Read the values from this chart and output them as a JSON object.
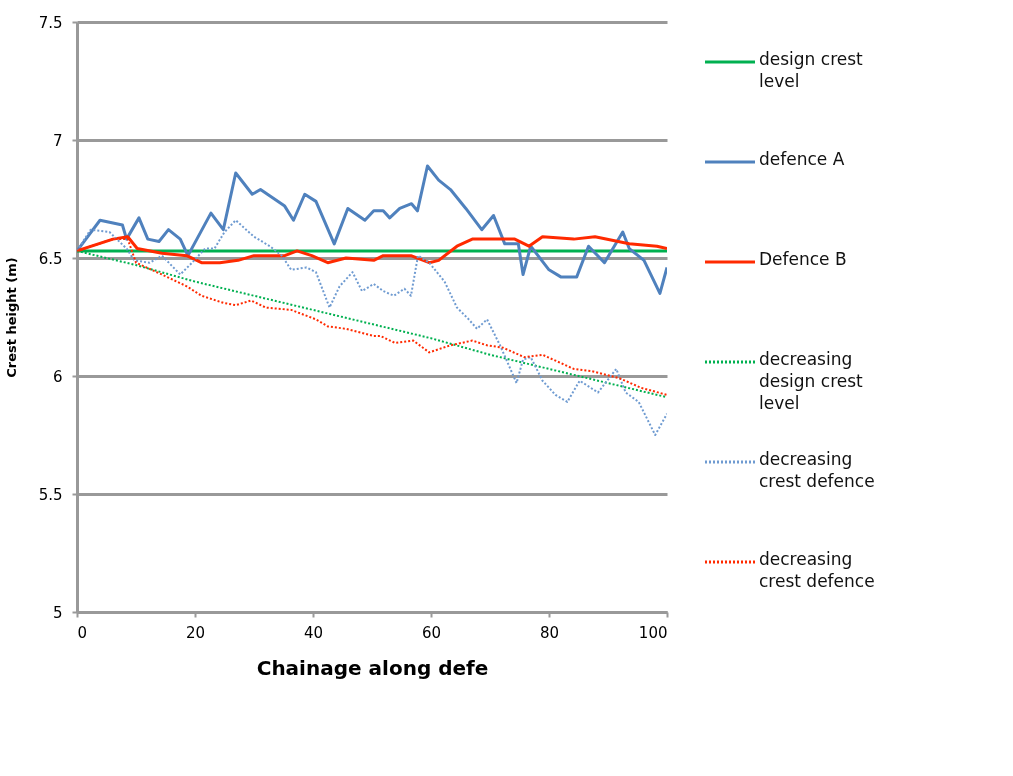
{
  "chart_data": {
    "type": "line",
    "xlabel": "Chainage along defe",
    "ylabel": "Crest height (m)",
    "xlim": [
      0,
      100
    ],
    "xticks": [
      0,
      20,
      40,
      60,
      80,
      100
    ],
    "ylim": [
      5,
      7.5
    ],
    "yticks": [
      5,
      5.5,
      6,
      6.5,
      7,
      7.5
    ],
    "grid": "y",
    "legend": "right",
    "marker": "none",
    "series": [
      {
        "name": "design crest level",
        "color": "#00b050",
        "line_style": "solid",
        "x": [
          0,
          100
        ],
        "values": [
          6.53,
          6.53
        ]
      },
      {
        "name": "defence A",
        "color": "#4f81bd",
        "line_style": "solid",
        "x": [
          0,
          3.9,
          7.7,
          8.4,
          10.5,
          12,
          13.9,
          15.5,
          17.5,
          18.8,
          22.7,
          24.8,
          26.9,
          29.7,
          31.1,
          35.2,
          36.7,
          38.6,
          40.5,
          43.6,
          45.9,
          48.8,
          50.3,
          51.9,
          53,
          54.7,
          56.7,
          57.7,
          59.4,
          61.3,
          63.3,
          65.9,
          68.6,
          70.6,
          72.5,
          74.8,
          75.6,
          76.9,
          80,
          82,
          84.7,
          86.7,
          89.4,
          92.5,
          93.6,
          96.1,
          98.8,
          100
        ],
        "values": [
          6.53,
          6.66,
          6.64,
          6.58,
          6.67,
          6.58,
          6.57,
          6.62,
          6.58,
          6.51,
          6.69,
          6.62,
          6.86,
          6.77,
          6.79,
          6.72,
          6.66,
          6.77,
          6.74,
          6.56,
          6.71,
          6.66,
          6.7,
          6.7,
          6.67,
          6.71,
          6.73,
          6.7,
          6.89,
          6.83,
          6.79,
          6.71,
          6.62,
          6.68,
          6.56,
          6.56,
          6.43,
          6.55,
          6.45,
          6.42,
          6.42,
          6.55,
          6.48,
          6.61,
          6.54,
          6.49,
          6.35,
          6.46
        ]
      },
      {
        "name": "Defence B",
        "color": "#ff2a00",
        "line_style": "solid",
        "x": [
          0,
          6.1,
          8.6,
          10.2,
          14.4,
          18.6,
          21.1,
          24.2,
          27.3,
          30,
          35.2,
          37.3,
          39.8,
          42.5,
          45.6,
          50.3,
          51.9,
          56.6,
          59.7,
          61.3,
          64.4,
          67,
          70.6,
          74.2,
          76.6,
          78.9,
          84.2,
          87.8,
          93.6,
          98.3,
          100
        ],
        "values": [
          6.53,
          6.58,
          6.59,
          6.54,
          6.52,
          6.51,
          6.48,
          6.48,
          6.49,
          6.51,
          6.51,
          6.53,
          6.51,
          6.48,
          6.5,
          6.49,
          6.51,
          6.51,
          6.48,
          6.49,
          6.55,
          6.58,
          6.58,
          6.58,
          6.55,
          6.59,
          6.58,
          6.59,
          6.56,
          6.55,
          6.54
        ]
      },
      {
        "name": "decreasing design crest level",
        "color": "#00b050",
        "line_style": "dotted",
        "x": [
          0,
          10,
          20,
          30,
          40,
          50,
          60,
          70,
          80,
          90,
          100
        ],
        "values": [
          6.53,
          6.47,
          6.4,
          6.34,
          6.28,
          6.22,
          6.16,
          6.09,
          6.03,
          5.97,
          5.91
        ]
      },
      {
        "name": "decreasing crest defence",
        "color": "#6f9bd1",
        "line_style": "dotted",
        "x": [
          0,
          2.3,
          5.5,
          8.4,
          9.7,
          12.3,
          14.4,
          17.5,
          19.5,
          21.7,
          23.3,
          25,
          26.9,
          30,
          32.7,
          34.7,
          36.3,
          38.9,
          40.5,
          42.8,
          44.5,
          46.7,
          48.3,
          50.3,
          51.9,
          53.7,
          55.5,
          56.6,
          57.8,
          59.7,
          62.3,
          64.4,
          66.4,
          67.8,
          69.5,
          71.7,
          74.5,
          75.6,
          76.9,
          78.9,
          81.1,
          83.1,
          85.2,
          88.3,
          91.4,
          93,
          95.2,
          98,
          100
        ],
        "values": [
          6.53,
          6.62,
          6.61,
          6.54,
          6.49,
          6.48,
          6.51,
          6.43,
          6.48,
          6.54,
          6.54,
          6.61,
          6.66,
          6.59,
          6.55,
          6.51,
          6.45,
          6.46,
          6.44,
          6.29,
          6.38,
          6.44,
          6.36,
          6.39,
          6.36,
          6.34,
          6.37,
          6.34,
          6.51,
          6.48,
          6.4,
          6.29,
          6.24,
          6.2,
          6.24,
          6.13,
          5.97,
          6.07,
          6.08,
          5.98,
          5.92,
          5.89,
          5.98,
          5.93,
          6.03,
          5.93,
          5.89,
          5.75,
          5.84
        ]
      },
      {
        "name": "decreasing crest defence",
        "color": "#ff2a00",
        "line_style": "dotted",
        "x": [
          0,
          6.1,
          8.6,
          10,
          14.4,
          18.6,
          21.1,
          24.8,
          26.9,
          29.5,
          32,
          36.3,
          40.5,
          42.5,
          45.6,
          50.3,
          51.4,
          53.9,
          57,
          59.7,
          63.3,
          67,
          69.5,
          72.2,
          75.8,
          78.9,
          84.2,
          87.3,
          92,
          95.6,
          100
        ],
        "values": [
          6.53,
          6.58,
          6.58,
          6.48,
          6.43,
          6.38,
          6.34,
          6.31,
          6.3,
          6.32,
          6.29,
          6.28,
          6.24,
          6.21,
          6.2,
          6.17,
          6.17,
          6.14,
          6.15,
          6.1,
          6.13,
          6.15,
          6.13,
          6.12,
          6.08,
          6.09,
          6.03,
          6.02,
          5.99,
          5.95,
          5.92
        ]
      }
    ]
  }
}
